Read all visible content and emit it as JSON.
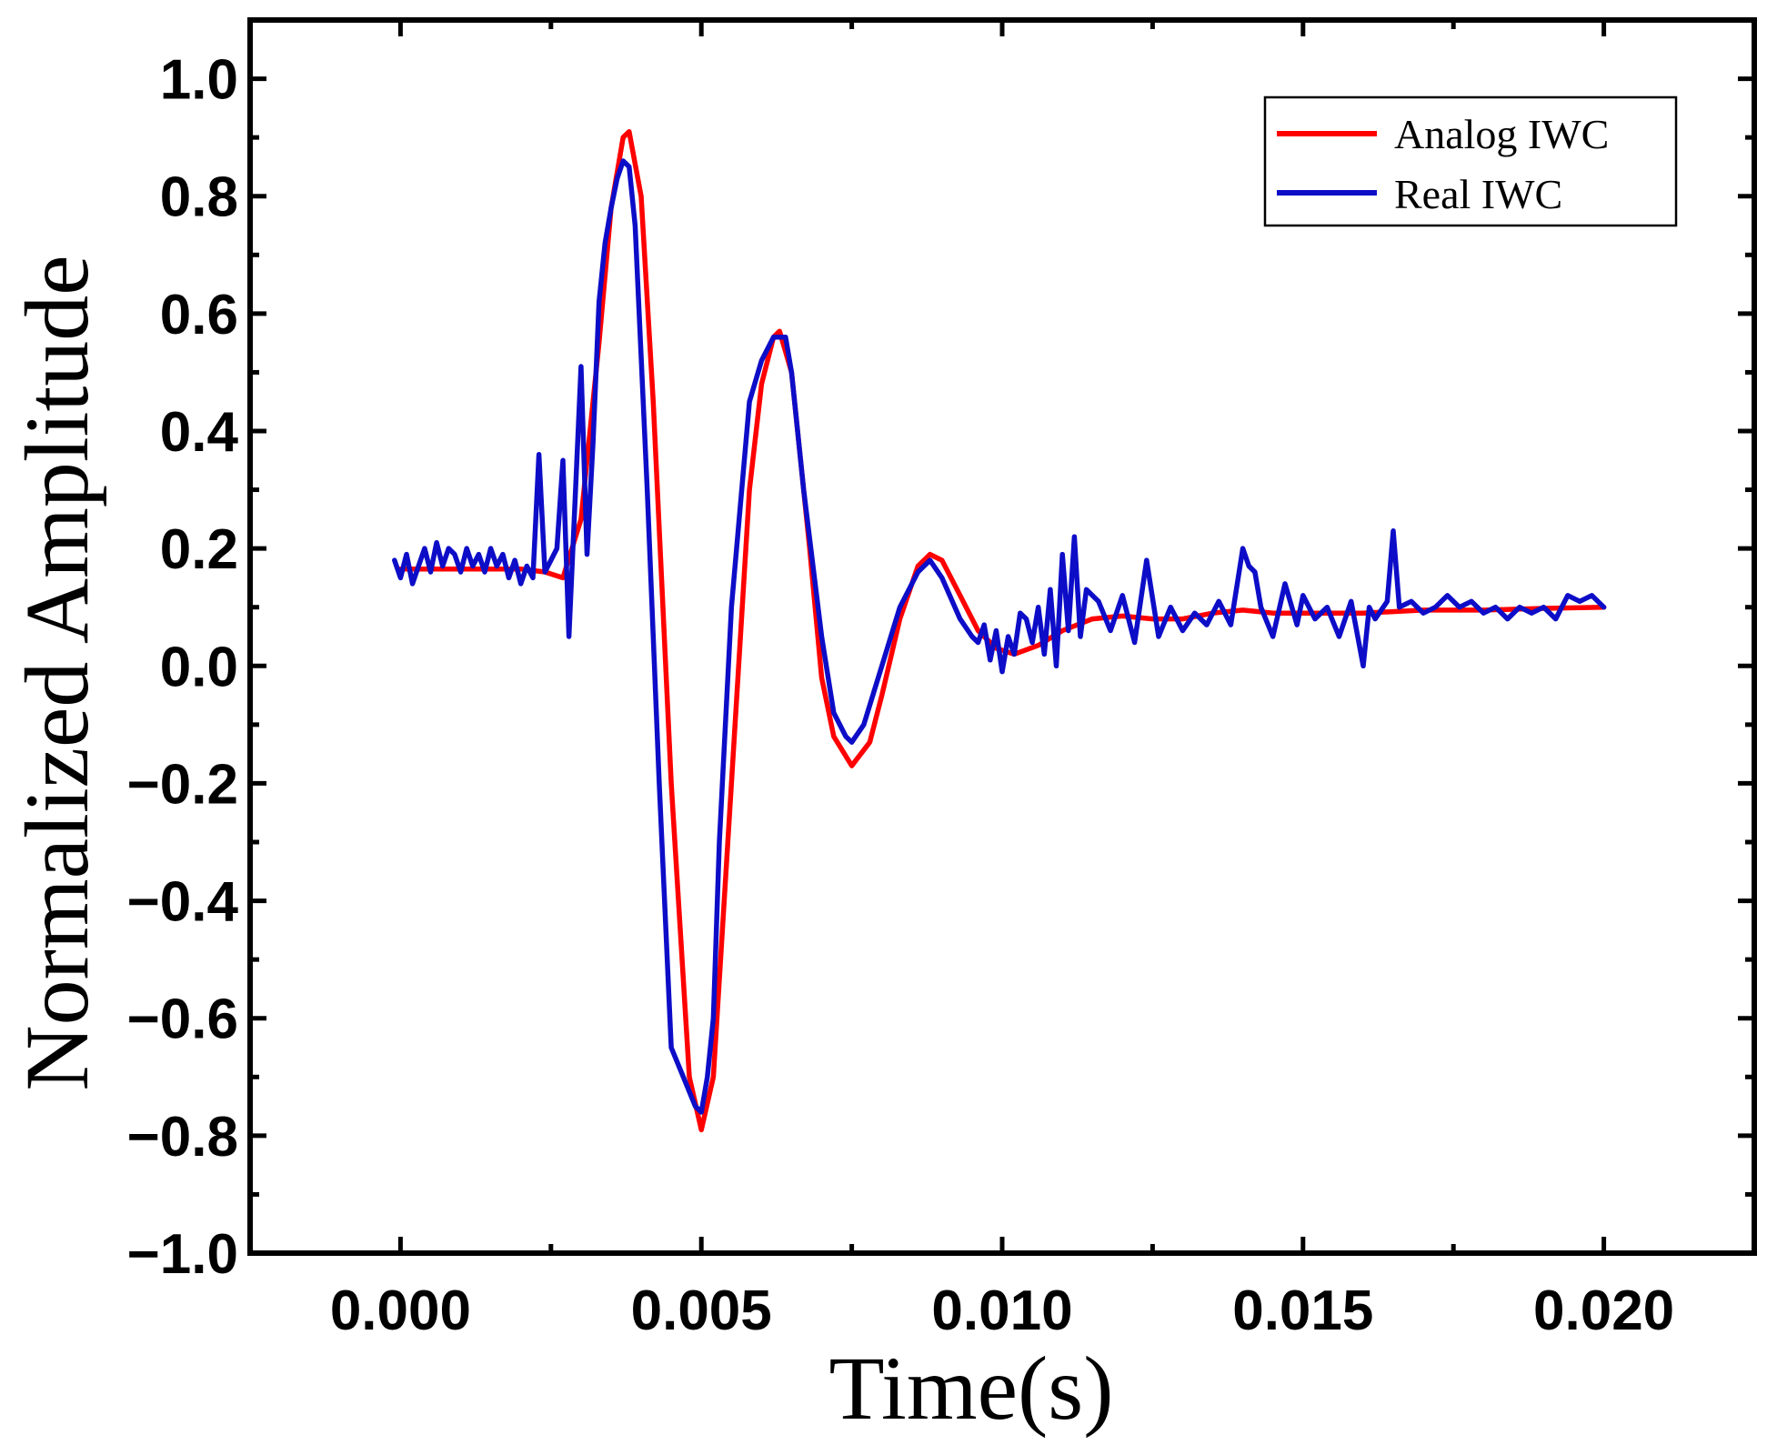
{
  "chart_data": {
    "type": "line",
    "title": "",
    "xlabel": "Time(s)",
    "ylabel": "Normalized Amplitude",
    "xlim": [
      -0.0025,
      0.0225
    ],
    "ylim": [
      -1.0,
      1.1
    ],
    "x_ticks": [
      0.0,
      0.005,
      0.01,
      0.015,
      0.02
    ],
    "x_tick_labels": [
      "0.000",
      "0.005",
      "0.010",
      "0.015",
      "0.020"
    ],
    "y_ticks": [
      -1.0,
      -0.8,
      -0.6,
      -0.4,
      -0.2,
      0.0,
      0.2,
      0.4,
      0.6,
      0.8,
      1.0
    ],
    "y_tick_labels": [
      "−1.0",
      "−0.8",
      "−0.6",
      "−0.4",
      "−0.2",
      "0.0",
      "0.2",
      "0.4",
      "0.6",
      "0.8",
      "1.0"
    ],
    "legend": {
      "position": "top-right",
      "entries": [
        "Analog IWC",
        "Real IWC"
      ]
    },
    "series": [
      {
        "name": "Analog IWC",
        "color": "#ff0000",
        "x": [
          0.0,
          0.002,
          0.0024,
          0.0027,
          0.003,
          0.0033,
          0.0035,
          0.0037,
          0.0038,
          0.004,
          0.0042,
          0.0045,
          0.0048,
          0.005,
          0.0052,
          0.0055,
          0.0058,
          0.006,
          0.0062,
          0.0063,
          0.0065,
          0.0068,
          0.007,
          0.0072,
          0.0075,
          0.0078,
          0.008,
          0.0083,
          0.0086,
          0.0088,
          0.009,
          0.0093,
          0.0096,
          0.0099,
          0.0102,
          0.0106,
          0.011,
          0.0115,
          0.012,
          0.0125,
          0.013,
          0.0135,
          0.014,
          0.0145,
          0.015,
          0.016,
          0.017,
          0.018,
          0.019,
          0.02
        ],
        "values": [
          0.165,
          0.165,
          0.16,
          0.15,
          0.25,
          0.55,
          0.78,
          0.9,
          0.91,
          0.8,
          0.45,
          -0.2,
          -0.7,
          -0.79,
          -0.7,
          -0.2,
          0.3,
          0.48,
          0.56,
          0.57,
          0.5,
          0.2,
          -0.02,
          -0.12,
          -0.17,
          -0.13,
          -0.05,
          0.08,
          0.17,
          0.19,
          0.18,
          0.12,
          0.06,
          0.03,
          0.02,
          0.035,
          0.06,
          0.08,
          0.085,
          0.08,
          0.08,
          0.09,
          0.095,
          0.09,
          0.09,
          0.09,
          0.095,
          0.095,
          0.098,
          0.1
        ]
      },
      {
        "name": "Real IWC",
        "color": "#0d0dc8",
        "x": [
          -0.0001,
          0.0,
          0.0001,
          0.0002,
          0.0003,
          0.0004,
          0.0005,
          0.0006,
          0.0007,
          0.0008,
          0.0009,
          0.001,
          0.0011,
          0.0012,
          0.0013,
          0.0014,
          0.0015,
          0.0016,
          0.0017,
          0.0018,
          0.0019,
          0.002,
          0.0021,
          0.0022,
          0.0023,
          0.0024,
          0.0025,
          0.0026,
          0.0027,
          0.0028,
          0.0029,
          0.003,
          0.0031,
          0.0032,
          0.0033,
          0.0034,
          0.0035,
          0.0036,
          0.0037,
          0.0038,
          0.0039,
          0.0041,
          0.0043,
          0.0045,
          0.0047,
          0.0049,
          0.005,
          0.0051,
          0.0052,
          0.0053,
          0.0055,
          0.0058,
          0.006,
          0.0062,
          0.0064,
          0.0065,
          0.0067,
          0.007,
          0.0072,
          0.0074,
          0.0075,
          0.0077,
          0.008,
          0.0083,
          0.0086,
          0.0088,
          0.009,
          0.0093,
          0.0095,
          0.0096,
          0.0097,
          0.0098,
          0.0099,
          0.01,
          0.0101,
          0.0102,
          0.0103,
          0.0104,
          0.0105,
          0.0106,
          0.0107,
          0.0108,
          0.0109,
          0.011,
          0.0111,
          0.0112,
          0.0113,
          0.0114,
          0.0116,
          0.0118,
          0.012,
          0.0122,
          0.0124,
          0.0126,
          0.0128,
          0.013,
          0.0132,
          0.0134,
          0.0136,
          0.0138,
          0.014,
          0.0141,
          0.0142,
          0.0143,
          0.0145,
          0.0147,
          0.0149,
          0.015,
          0.0152,
          0.0154,
          0.0156,
          0.0158,
          0.016,
          0.0161,
          0.0162,
          0.0164,
          0.0165,
          0.0166,
          0.0168,
          0.017,
          0.0172,
          0.0174,
          0.0176,
          0.0178,
          0.018,
          0.0182,
          0.0184,
          0.0186,
          0.0188,
          0.019,
          0.0192,
          0.0194,
          0.0196,
          0.0198,
          0.02
        ],
        "values": [
          0.18,
          0.15,
          0.19,
          0.14,
          0.17,
          0.2,
          0.16,
          0.21,
          0.17,
          0.2,
          0.19,
          0.16,
          0.2,
          0.17,
          0.19,
          0.16,
          0.2,
          0.17,
          0.19,
          0.15,
          0.18,
          0.14,
          0.17,
          0.15,
          0.36,
          0.16,
          0.18,
          0.2,
          0.35,
          0.05,
          0.28,
          0.51,
          0.19,
          0.38,
          0.62,
          0.72,
          0.78,
          0.83,
          0.86,
          0.85,
          0.75,
          0.3,
          -0.2,
          -0.65,
          -0.7,
          -0.75,
          -0.76,
          -0.7,
          -0.6,
          -0.3,
          0.1,
          0.45,
          0.52,
          0.56,
          0.56,
          0.5,
          0.3,
          0.05,
          -0.08,
          -0.12,
          -0.13,
          -0.1,
          0.0,
          0.1,
          0.16,
          0.18,
          0.15,
          0.08,
          0.05,
          0.04,
          0.07,
          0.01,
          0.06,
          -0.01,
          0.05,
          0.02,
          0.09,
          0.08,
          0.04,
          0.1,
          0.02,
          0.13,
          0.0,
          0.19,
          0.06,
          0.22,
          0.05,
          0.13,
          0.11,
          0.06,
          0.12,
          0.04,
          0.18,
          0.05,
          0.1,
          0.06,
          0.09,
          0.07,
          0.11,
          0.07,
          0.2,
          0.17,
          0.16,
          0.1,
          0.05,
          0.14,
          0.07,
          0.12,
          0.08,
          0.1,
          0.05,
          0.11,
          0.0,
          0.1,
          0.08,
          0.11,
          0.23,
          0.1,
          0.11,
          0.09,
          0.1,
          0.12,
          0.1,
          0.11,
          0.09,
          0.1,
          0.08,
          0.1,
          0.09,
          0.1,
          0.08,
          0.12,
          0.11,
          0.12,
          0.1
        ]
      }
    ]
  }
}
